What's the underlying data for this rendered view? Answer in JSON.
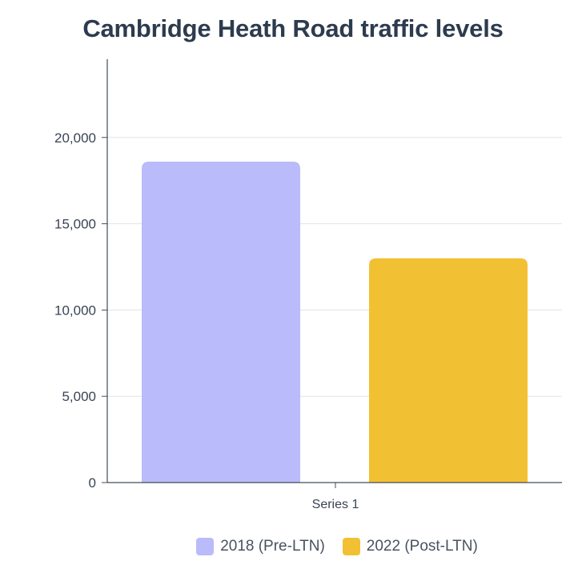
{
  "chart_data": {
    "type": "bar",
    "title": "Cambridge Heath Road traffic levels",
    "categories": [
      "Series 1"
    ],
    "series": [
      {
        "name": "2018 (Pre-LTN)",
        "values": [
          18600
        ],
        "color": "#babbfb"
      },
      {
        "name": "2022 (Post-LTN)",
        "values": [
          13000
        ],
        "color": "#f2c033"
      }
    ],
    "ylim": [
      0,
      25000
    ],
    "yticks": [
      0,
      5000,
      10000,
      15000,
      20000
    ],
    "ytick_labels": [
      "0",
      "5,000",
      "10,000",
      "15,000",
      "20,000"
    ],
    "grid": true,
    "legend_position": "bottom"
  }
}
